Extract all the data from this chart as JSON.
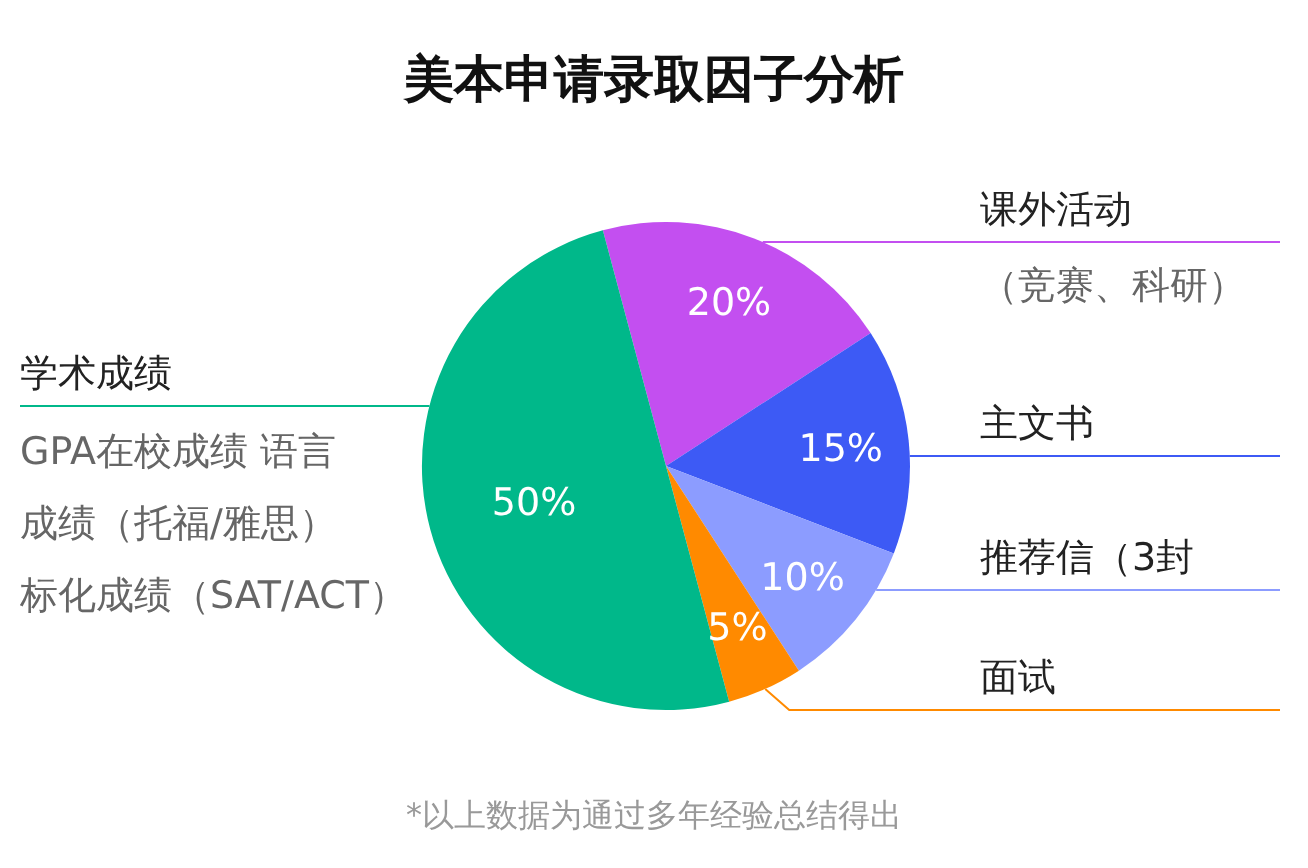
{
  "chart_data": {
    "type": "pie",
    "title": "美本申请录取因子分析",
    "categories": [
      "课外活动",
      "主文书",
      "推荐信（3封",
      "面试",
      "学术成绩"
    ],
    "values": [
      20,
      15,
      10,
      5,
      50
    ],
    "value_labels": [
      "20%",
      "15%",
      "10%",
      "5%",
      "50%"
    ],
    "colors": [
      "#c34ff0",
      "#3d5af5",
      "#8c9cff",
      "#ff8a00",
      "#00b88a"
    ],
    "annotations": [
      "（竞赛、科研）",
      "GPA在校成绩 语言",
      "成绩（托福/雅思）",
      "标化成绩（SAT/ACT）",
      "*以上数据为通过多年经验总结得出"
    ]
  }
}
